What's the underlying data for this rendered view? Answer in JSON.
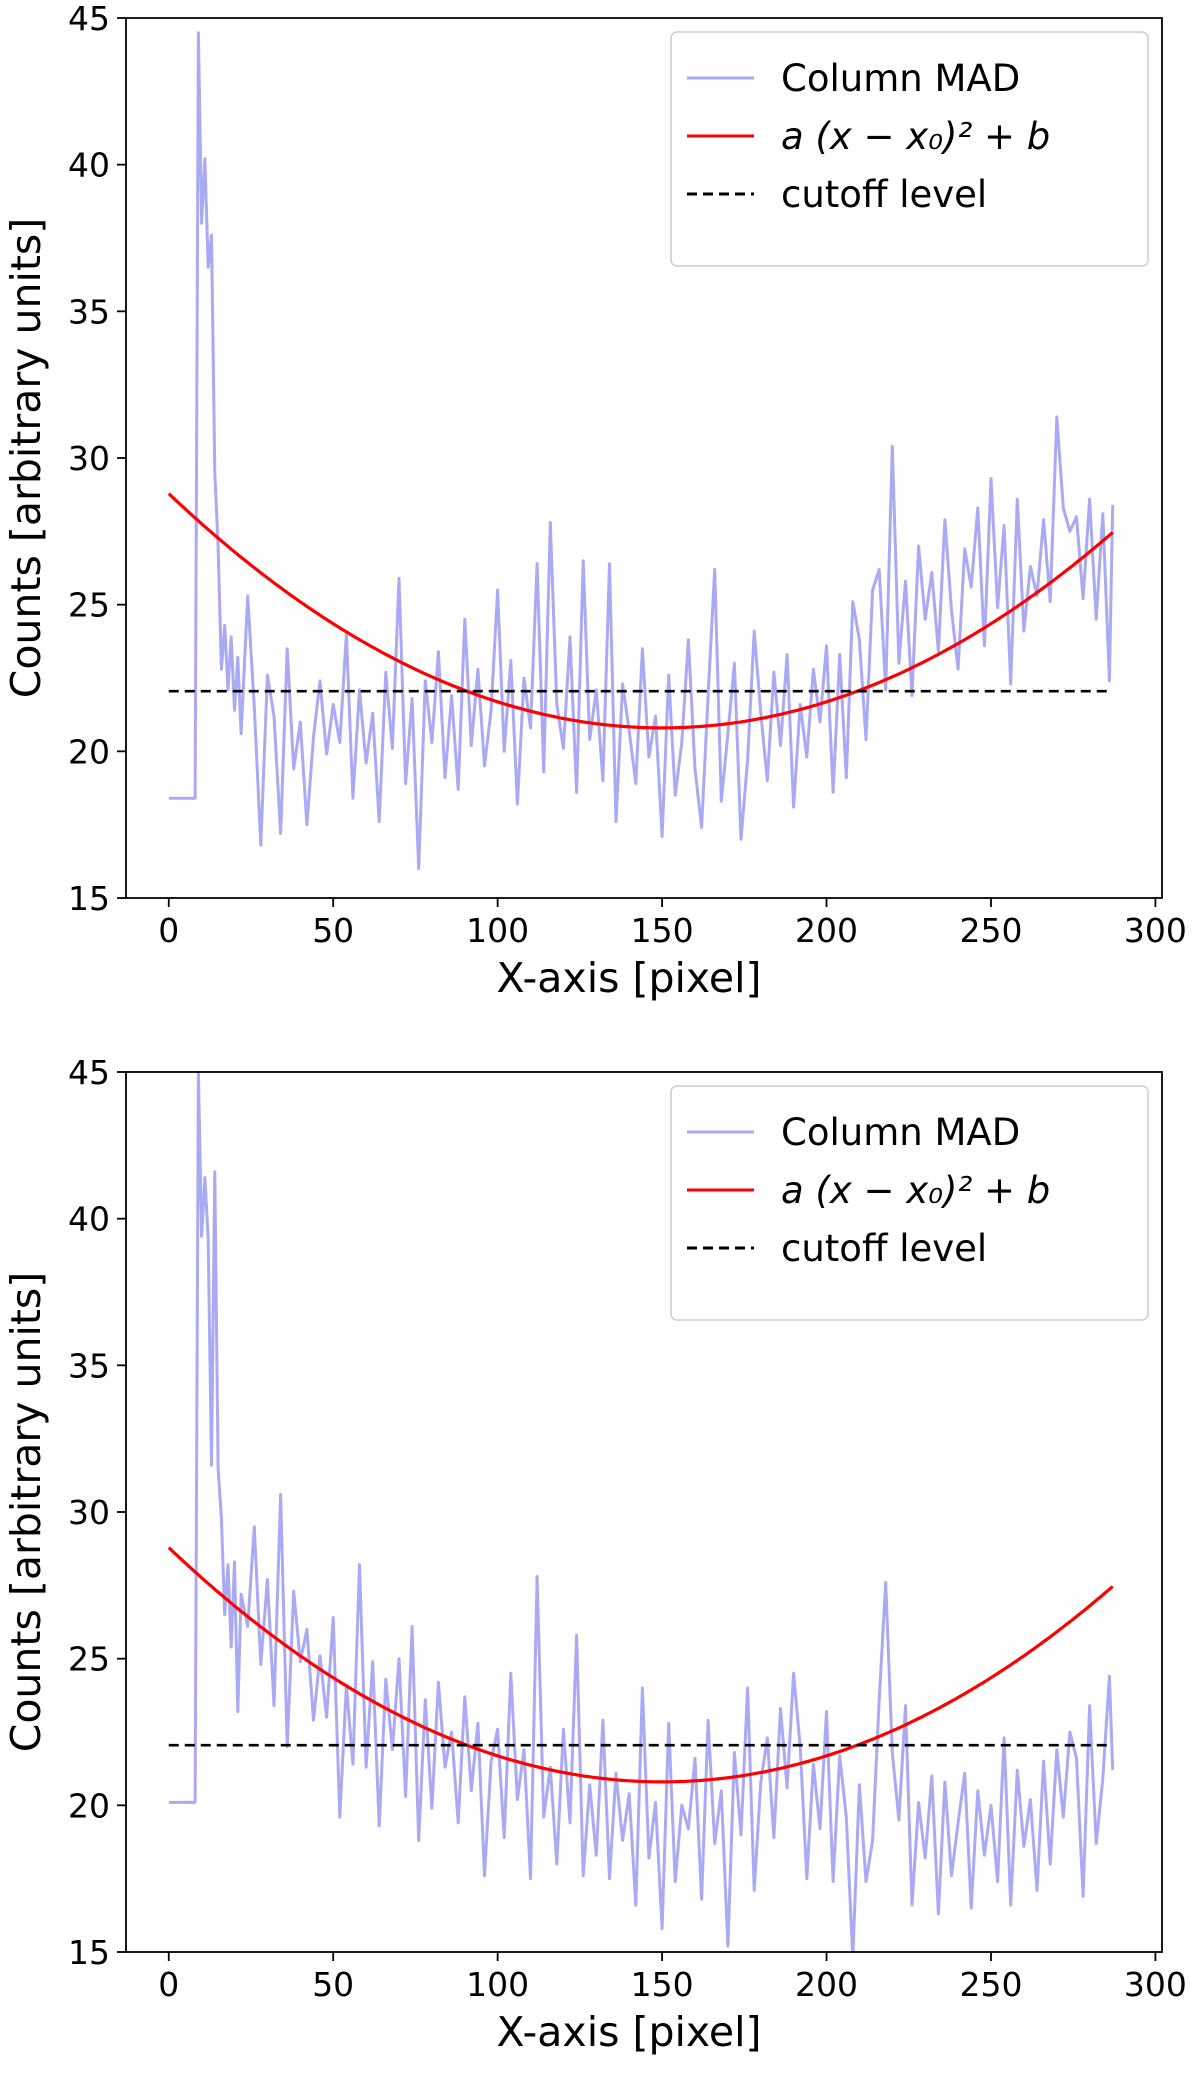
{
  "chart_data": [
    {
      "type": "line",
      "panel": "top",
      "title": "",
      "xlabel": "X-axis [pixel]",
      "ylabel": "Counts [arbitrary units]",
      "xlim": [
        -13,
        302
      ],
      "ylim": [
        15,
        45
      ],
      "xticks": [
        0,
        50,
        100,
        150,
        200,
        250,
        300
      ],
      "yticks": [
        15,
        20,
        25,
        30,
        35,
        40,
        45
      ],
      "grid": false,
      "legend": {
        "position": "top-right",
        "entries": [
          {
            "label": "Column MAD",
            "style": "line",
            "color": "#aaaaf4"
          },
          {
            "label": "a (x − x₀)² + b",
            "style": "line",
            "color": "#ff0000"
          },
          {
            "label": "cutoff level",
            "style": "dashed",
            "color": "#000000"
          }
        ]
      },
      "series": [
        {
          "name": "Column MAD",
          "color": "#aaaaf4",
          "x": [
            0,
            8,
            9,
            10,
            11,
            12,
            13,
            14,
            15,
            16,
            17,
            18,
            19,
            20,
            21,
            22,
            24,
            26,
            28,
            30,
            32,
            34,
            36,
            38,
            40,
            42,
            44,
            46,
            48,
            50,
            52,
            54,
            56,
            58,
            60,
            62,
            64,
            66,
            68,
            70,
            72,
            74,
            76,
            78,
            80,
            82,
            84,
            86,
            88,
            90,
            92,
            94,
            96,
            98,
            100,
            102,
            104,
            106,
            108,
            110,
            112,
            114,
            116,
            118,
            120,
            122,
            124,
            126,
            128,
            130,
            132,
            134,
            136,
            138,
            140,
            142,
            144,
            146,
            148,
            150,
            152,
            154,
            156,
            158,
            160,
            162,
            164,
            166,
            168,
            170,
            172,
            174,
            176,
            178,
            180,
            182,
            184,
            186,
            188,
            190,
            192,
            194,
            196,
            198,
            200,
            202,
            204,
            206,
            208,
            210,
            212,
            214,
            216,
            218,
            220,
            222,
            224,
            226,
            228,
            230,
            232,
            234,
            236,
            238,
            240,
            242,
            244,
            246,
            248,
            250,
            252,
            254,
            256,
            258,
            260,
            262,
            264,
            266,
            268,
            270,
            272,
            274,
            276,
            278,
            280,
            282,
            284,
            286,
            287
          ],
          "y": [
            18.4,
            18.4,
            44.5,
            38.0,
            40.2,
            36.5,
            37.6,
            29.5,
            27.0,
            22.8,
            24.3,
            22.1,
            23.9,
            21.4,
            23.2,
            20.6,
            25.3,
            21.5,
            16.8,
            22.6,
            21.2,
            17.2,
            23.5,
            19.4,
            21.0,
            17.5,
            20.5,
            22.4,
            19.9,
            21.6,
            20.3,
            24.0,
            18.4,
            22.1,
            19.6,
            21.3,
            17.6,
            22.7,
            20.1,
            25.9,
            18.9,
            21.8,
            16.0,
            22.4,
            20.3,
            23.4,
            19.1,
            21.9,
            18.7,
            24.5,
            20.2,
            22.8,
            19.5,
            21.4,
            25.5,
            20.0,
            23.1,
            18.2,
            22.5,
            20.8,
            26.4,
            19.3,
            27.8,
            21.6,
            20.1,
            23.9,
            18.6,
            26.5,
            20.4,
            22.1,
            19.0,
            26.4,
            17.6,
            22.3,
            20.7,
            18.9,
            23.5,
            19.8,
            21.2,
            17.1,
            22.6,
            18.5,
            20.3,
            23.8,
            19.4,
            17.4,
            21.9,
            26.2,
            18.3,
            20.6,
            23.0,
            17.0,
            19.7,
            24.1,
            21.3,
            19.0,
            22.7,
            20.2,
            23.3,
            18.1,
            21.6,
            19.8,
            22.8,
            21.0,
            23.6,
            18.6,
            23.3,
            19.1,
            25.1,
            23.8,
            20.4,
            25.5,
            26.2,
            22.1,
            30.4,
            23.0,
            25.8,
            21.9,
            27.0,
            24.5,
            26.1,
            23.4,
            27.9,
            24.8,
            22.8,
            26.9,
            25.6,
            28.3,
            23.6,
            29.3,
            24.9,
            27.7,
            22.3,
            28.6,
            24.1,
            26.3,
            25.3,
            27.9,
            25.1,
            31.4,
            28.3,
            27.5,
            28.0,
            25.2,
            28.6,
            24.5,
            28.1,
            22.4,
            28.4
          ]
        },
        {
          "name": "a (x − x₀)² + b",
          "color": "#ff0000",
          "model": {
            "a": 0.000355,
            "x0": 150,
            "b": 20.8
          },
          "x_range": [
            0,
            287
          ]
        },
        {
          "name": "cutoff level",
          "color": "#000000",
          "dashed": true,
          "y": 22.05,
          "x_range": [
            0,
            287
          ]
        }
      ]
    },
    {
      "type": "line",
      "panel": "bottom",
      "title": "",
      "xlabel": "X-axis [pixel]",
      "ylabel": "Counts [arbitrary units]",
      "xlim": [
        -13,
        302
      ],
      "ylim": [
        15,
        45
      ],
      "xticks": [
        0,
        50,
        100,
        150,
        200,
        250,
        300
      ],
      "yticks": [
        15,
        20,
        25,
        30,
        35,
        40,
        45
      ],
      "grid": false,
      "legend": {
        "position": "top-right",
        "entries": [
          {
            "label": "Column MAD",
            "style": "line",
            "color": "#aaaaf4"
          },
          {
            "label": "a (x − x₀)² + b",
            "style": "line",
            "color": "#ff0000"
          },
          {
            "label": "cutoff level",
            "style": "dashed",
            "color": "#000000"
          }
        ]
      },
      "series": [
        {
          "name": "Column MAD",
          "color": "#aaaaf4",
          "x": [
            0,
            8,
            9,
            10,
            11,
            12,
            13,
            14,
            15,
            16,
            17,
            18,
            19,
            20,
            21,
            22,
            24,
            26,
            28,
            30,
            32,
            34,
            36,
            38,
            40,
            42,
            44,
            46,
            48,
            50,
            52,
            54,
            56,
            58,
            60,
            62,
            64,
            66,
            68,
            70,
            72,
            74,
            76,
            78,
            80,
            82,
            84,
            86,
            88,
            90,
            92,
            94,
            96,
            98,
            100,
            102,
            104,
            106,
            108,
            110,
            112,
            114,
            116,
            118,
            120,
            122,
            124,
            126,
            128,
            130,
            132,
            134,
            136,
            138,
            140,
            142,
            144,
            146,
            148,
            150,
            152,
            154,
            156,
            158,
            160,
            162,
            164,
            166,
            168,
            170,
            172,
            174,
            176,
            178,
            180,
            182,
            184,
            186,
            188,
            190,
            192,
            194,
            196,
            198,
            200,
            202,
            204,
            206,
            208,
            210,
            212,
            214,
            216,
            218,
            220,
            222,
            224,
            226,
            228,
            230,
            232,
            234,
            236,
            238,
            240,
            242,
            244,
            246,
            248,
            250,
            252,
            254,
            256,
            258,
            260,
            262,
            264,
            266,
            268,
            270,
            272,
            274,
            276,
            278,
            280,
            282,
            284,
            286,
            287
          ],
          "y": [
            20.1,
            20.1,
            45.0,
            39.4,
            41.4,
            39.3,
            31.6,
            41.6,
            31.5,
            29.8,
            26.5,
            28.2,
            25.4,
            28.3,
            23.2,
            27.2,
            26.1,
            29.5,
            24.8,
            27.7,
            23.4,
            30.6,
            22.0,
            27.3,
            24.9,
            26.0,
            22.9,
            25.1,
            23.0,
            26.4,
            19.6,
            24.1,
            21.4,
            28.2,
            21.3,
            24.9,
            19.3,
            24.3,
            21.9,
            25.0,
            20.3,
            26.1,
            18.8,
            23.6,
            19.9,
            24.2,
            21.3,
            22.5,
            19.4,
            23.7,
            20.5,
            22.8,
            17.6,
            21.5,
            22.6,
            18.9,
            24.5,
            20.2,
            21.9,
            17.5,
            27.8,
            19.6,
            21.3,
            18.0,
            22.6,
            19.4,
            25.8,
            17.6,
            20.7,
            18.3,
            22.9,
            17.5,
            21.1,
            18.8,
            20.4,
            16.6,
            24.0,
            18.2,
            20.1,
            15.8,
            22.8,
            17.4,
            20.0,
            19.2,
            21.6,
            16.8,
            22.9,
            18.7,
            20.5,
            15.2,
            21.8,
            19.0,
            24.0,
            17.1,
            20.8,
            22.3,
            18.9,
            23.3,
            20.6,
            24.5,
            22.0,
            17.5,
            21.4,
            19.2,
            23.2,
            17.4,
            21.7,
            19.6,
            14.8,
            20.7,
            17.4,
            18.8,
            23.6,
            27.6,
            21.8,
            19.5,
            23.4,
            16.6,
            20.1,
            18.2,
            21.0,
            16.3,
            20.8,
            17.6,
            19.4,
            21.1,
            16.5,
            20.5,
            18.3,
            20.0,
            17.4,
            22.3,
            16.6,
            21.2,
            18.6,
            20.2,
            17.1,
            21.5,
            18.0,
            21.9,
            19.6,
            22.5,
            21.6,
            16.9,
            23.4,
            18.7,
            20.9,
            24.4,
            21.2
          ]
        },
        {
          "name": "a (x − x₀)² + b",
          "color": "#ff0000",
          "model": {
            "a": 0.000355,
            "x0": 150,
            "b": 20.8
          },
          "x_range": [
            0,
            287
          ]
        },
        {
          "name": "cutoff level",
          "color": "#000000",
          "dashed": true,
          "y": 22.05,
          "x_range": [
            0,
            287
          ]
        }
      ]
    }
  ]
}
